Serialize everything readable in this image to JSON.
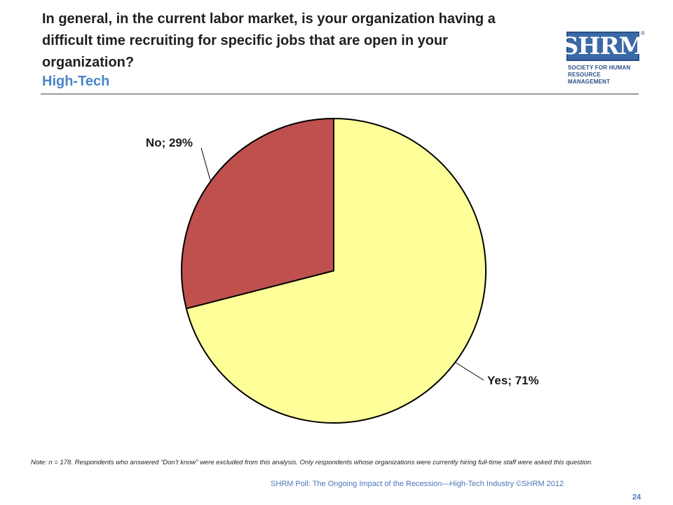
{
  "slide": {
    "title": "In general, in the current labor market, is your organization having a difficult time recruiting for specific jobs that are open in your organization?",
    "subtitle": "High-Tech",
    "note": "Note: n = 178. Respondents who answered “Don’t know” were excluded from this analysis. Only respondents whose organizations were currently hiring full-time staff were asked this question.",
    "footer": "SHRM Poll: The Ongoing Impact of the Recession—High-Tech Industry ©SHRM 2012",
    "page_number": "24"
  },
  "logo": {
    "wordmark": "SHRM",
    "reg_mark": "®",
    "tagline_1": "SOCIETY FOR HUMAN",
    "tagline_2": "RESOURCE MANAGEMENT"
  },
  "colors": {
    "subtitle": "#4a86c8",
    "yes_slice": "#ffff99",
    "no_slice": "#c0504d",
    "brand_blue": "#3b68a6"
  },
  "chart_data": {
    "type": "pie",
    "title": "",
    "slices": [
      {
        "name": "Yes",
        "value": 71,
        "label": "Yes; 71%",
        "color": "#ffff99"
      },
      {
        "name": "No",
        "value": 29,
        "label": "No; 29%",
        "color": "#c0504d"
      }
    ],
    "start": "12 o'clock",
    "direction": "clockwise",
    "legend": "none"
  }
}
